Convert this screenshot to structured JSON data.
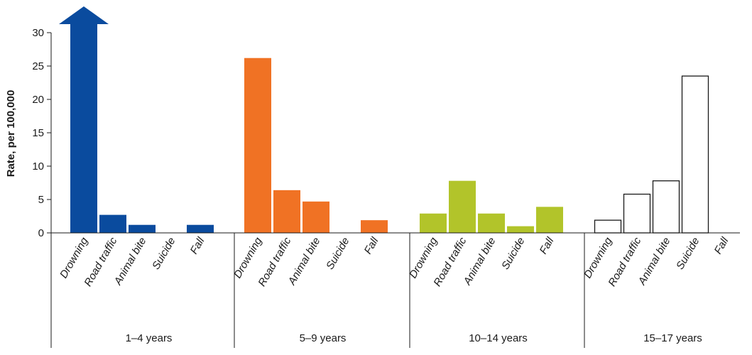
{
  "chart_data": {
    "type": "bar",
    "ylabel": "Rate, per 100,000",
    "xlabel": "",
    "ylim": [
      0,
      30
    ],
    "yticks": [
      0,
      5,
      10,
      15,
      20,
      25,
      30
    ],
    "grid": false,
    "legend": "none",
    "categories": [
      "Drowning",
      "Road traffic",
      "Animal bite",
      "Suicide",
      "Fall"
    ],
    "groups": [
      {
        "label": "1–4 years",
        "color": "#0a4b9e",
        "fill": "solid",
        "values": [
          30,
          2.7,
          1.2,
          0,
          1.2
        ],
        "overflow": [
          true,
          false,
          false,
          false,
          false
        ]
      },
      {
        "label": "5–9 years",
        "color": "#f07224",
        "fill": "solid",
        "values": [
          26.2,
          6.4,
          4.7,
          0,
          1.9
        ],
        "overflow": [
          false,
          false,
          false,
          false,
          false
        ]
      },
      {
        "label": "10–14 years",
        "color": "#b2c42a",
        "fill": "solid",
        "values": [
          2.9,
          7.8,
          2.9,
          1.0,
          3.9
        ],
        "overflow": [
          false,
          false,
          false,
          false,
          false
        ]
      },
      {
        "label": "15–17 years",
        "color": "#1a1a1a",
        "fill": "outline",
        "values": [
          1.9,
          5.8,
          7.8,
          23.5,
          0
        ],
        "overflow": [
          false,
          false,
          false,
          false,
          false
        ]
      }
    ]
  }
}
